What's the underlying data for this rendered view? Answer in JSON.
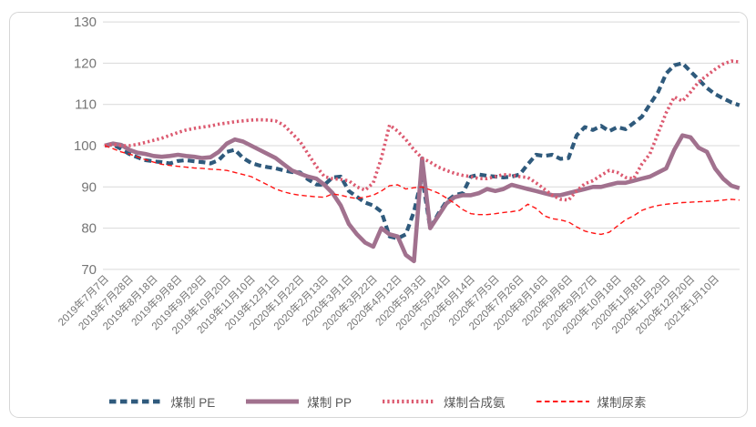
{
  "chart_data": {
    "type": "line",
    "title": "",
    "grid": "horizontal",
    "legend_position": "bottom",
    "ylim": [
      70,
      130
    ],
    "y_ticks": [
      130,
      120,
      110,
      100,
      90,
      80,
      70
    ],
    "x_tick_labels": [
      "2019年7月7日",
      "2019年7月28日",
      "2019年8月18日",
      "2019年9月8日",
      "2019年9月29日",
      "2019年10月20日",
      "2019年11月10日",
      "2019年12月1日",
      "2020年1月22日",
      "2020年2月13日",
      "2020年3月1日",
      "2020年3月22日",
      "2020年4月12日",
      "2020年5月3日",
      "2020年5月24日",
      "2020年6月14日",
      "2020年7月5日",
      "2020年7月26日",
      "2020年8月16日",
      "2020年9月6日",
      "2020年9月27日",
      "2020年10月18日",
      "2020年11月8日",
      "2020年11月29日",
      "2020年12月20日",
      "2021年1月10日"
    ],
    "points_per_tick": 3,
    "series": [
      {
        "id": "pe",
        "name": "煤制 PE",
        "color": "#2f5a7c",
        "dash": "7.5 4.5",
        "width": 4.2,
        "values": [
          100,
          100.3,
          99.2,
          98,
          97.2,
          96.5,
          96.2,
          96,
          95.7,
          96.3,
          96.5,
          96.2,
          96,
          95.7,
          96.5,
          98.5,
          99,
          97,
          95.8,
          95.2,
          94.8,
          94.5,
          94,
          93.6,
          93.5,
          91.8,
          90.6,
          90.5,
          92.3,
          92.5,
          89,
          87.6,
          86.2,
          85.5,
          84,
          78,
          77.5,
          78.5,
          84,
          92.5,
          80,
          83.5,
          86.5,
          88,
          88.5,
          92.5,
          93,
          92.7,
          92.5,
          92.3,
          92.5,
          93,
          95.5,
          97.8,
          97.5,
          97.8,
          96.8,
          97,
          102.5,
          104.5,
          103.8,
          104.8,
          103.5,
          104.5,
          104,
          105.5,
          107,
          110,
          113,
          117.5,
          119.5,
          120,
          118,
          116,
          114,
          112.5,
          111.5,
          110.5,
          109.8
        ]
      },
      {
        "id": "pp",
        "name": "煤制 PP",
        "color": "#a1718e",
        "dash": "",
        "width": 4.6,
        "values": [
          100,
          100.5,
          100.2,
          99,
          98.3,
          98,
          97.5,
          97.3,
          97.5,
          97.8,
          97.5,
          97.3,
          97,
          97.2,
          98.5,
          100.5,
          101.5,
          101,
          100,
          99,
          98,
          97,
          95.5,
          94,
          93.2,
          92.5,
          92,
          90.5,
          88.5,
          85.5,
          81,
          78.5,
          76.5,
          75.5,
          80,
          78.5,
          78,
          73.5,
          72,
          96.9,
          80,
          83,
          86,
          87.5,
          88,
          88,
          88.5,
          89.5,
          89,
          89.5,
          90.5,
          90,
          89.5,
          89,
          88.5,
          88,
          88,
          88.5,
          89,
          89.5,
          90,
          90,
          90.5,
          91,
          91,
          91.5,
          92,
          92.5,
          93.5,
          94.5,
          99,
          102.5,
          102,
          99.5,
          98.5,
          94.5,
          92,
          90.3,
          89.7
        ]
      },
      {
        "id": "ammonia",
        "name": "煤制合成氨",
        "color": "#dc5a70",
        "dash": "2.3 3",
        "width": 3.6,
        "values": [
          100,
          100.3,
          100,
          100,
          100.3,
          100.8,
          101.3,
          101.8,
          102.5,
          103.2,
          103.8,
          104.2,
          104.5,
          104.8,
          105.2,
          105.5,
          105.8,
          106,
          106.2,
          106.3,
          106.2,
          106,
          105,
          103,
          101,
          98,
          95,
          92.5,
          92,
          91.8,
          91.5,
          90,
          89.2,
          91,
          97,
          105,
          103.5,
          101.5,
          99,
          97,
          96,
          94.8,
          94,
          93.3,
          92.8,
          92.5,
          92,
          92,
          92.5,
          93,
          92.8,
          92.5,
          92.3,
          91,
          89.5,
          88,
          87,
          86.8,
          89,
          90.8,
          91.5,
          92.8,
          94,
          93.5,
          92.3,
          92,
          95.5,
          98,
          103,
          108,
          111.8,
          110.8,
          113,
          115.5,
          117,
          118.5,
          119.8,
          120.5,
          120.3
        ]
      },
      {
        "id": "urea",
        "name": "煤制尿素",
        "color": "#ff1414",
        "dash": "5.5 3.5",
        "width": 1.4,
        "values": [
          100,
          99.3,
          98.5,
          98,
          97.3,
          96.6,
          96,
          95.5,
          95.2,
          95,
          94.8,
          94.6,
          94.5,
          94.3,
          94.2,
          94,
          93.5,
          93,
          92.5,
          91.5,
          90.5,
          89.5,
          88.8,
          88.3,
          88,
          87.8,
          87.6,
          87.5,
          88.3,
          88,
          87.5,
          87.2,
          87.5,
          88,
          89,
          90.3,
          90.5,
          89.5,
          89.8,
          90,
          89.3,
          88.5,
          87.3,
          86,
          84.5,
          83.5,
          83.3,
          83.3,
          83.5,
          83.8,
          84,
          84.3,
          85.8,
          84.8,
          83,
          82.3,
          82,
          81.5,
          80.3,
          79.3,
          78.8,
          78.5,
          79,
          80.5,
          82,
          83,
          84.3,
          85,
          85.5,
          85.8,
          86,
          86.2,
          86.3,
          86.4,
          86.5,
          86.6,
          86.8,
          87,
          86.8
        ]
      }
    ],
    "style": {
      "grid_color": "#d9d9d9",
      "frame_color": "#d6d6d6",
      "axis_text_color": "#767676",
      "background": "#ffffff"
    }
  }
}
